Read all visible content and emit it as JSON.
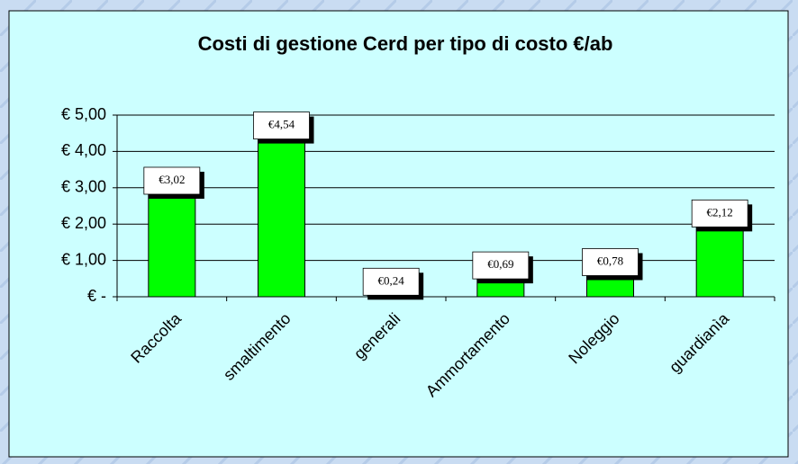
{
  "chart_data": {
    "type": "bar",
    "title": "Costi di gestione Cerd per tipo di costo €/ab",
    "categories": [
      "Raccolta",
      "smaltimento",
      "generali",
      "Ammortamento",
      "Noleggio",
      "guardianìa"
    ],
    "values": [
      3.02,
      4.54,
      0.24,
      0.69,
      0.78,
      2.12
    ],
    "value_labels": [
      "€3,02",
      "€4,54",
      "€0,24",
      "€0,69",
      "€0,78",
      "€2,12"
    ],
    "color": "#00ff00",
    "ylim": [
      0,
      5
    ],
    "yticks": [
      {
        "value": 0,
        "label": "€ -"
      },
      {
        "value": 1,
        "label": "€ 1,00"
      },
      {
        "value": 2,
        "label": "€ 2,00"
      },
      {
        "value": 3,
        "label": "€ 3,00"
      },
      {
        "value": 4,
        "label": "€ 4,00"
      },
      {
        "value": 5,
        "label": "€ 5,00"
      }
    ],
    "grid": true
  }
}
